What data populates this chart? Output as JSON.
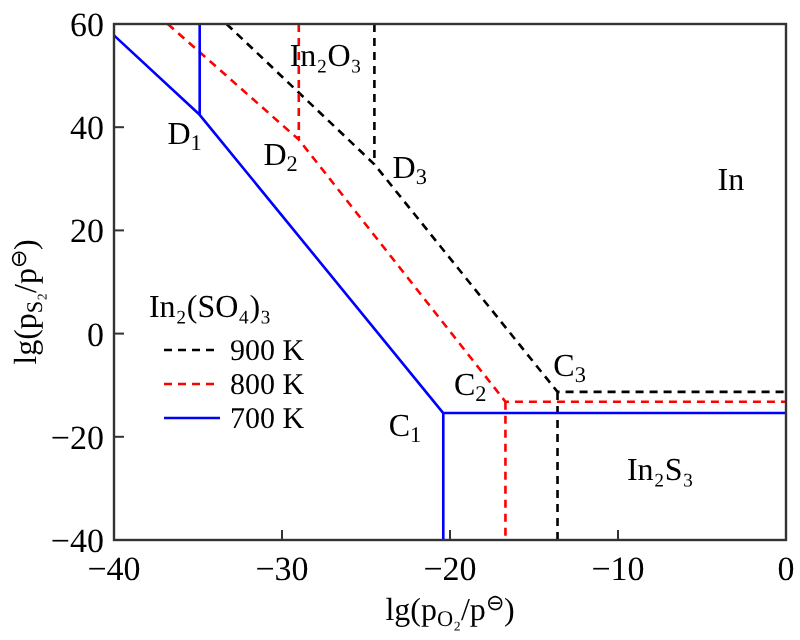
{
  "chart_data": {
    "type": "line",
    "xlabel": "lg(p$_{O₂}$/p$^{⊖}$)",
    "ylabel": "lg(p$_{S₂}$/p$^{⊖}$)",
    "xlim": [
      -40,
      0
    ],
    "ylim": [
      -40,
      60
    ],
    "xticks": [
      -40,
      -30,
      -20,
      -10,
      0
    ],
    "yticks": [
      -40,
      -20,
      0,
      20,
      40,
      60
    ],
    "series": [
      {
        "name": "900 K",
        "color": "#000000",
        "line_style": "dashed",
        "x": [
          -33.3,
          -24.5,
          -13.6,
          0,
          null,
          -24.5,
          -24.5,
          null,
          -13.6,
          -13.6
        ],
        "values": [
          60,
          32.8,
          -11.3,
          -11.3,
          null,
          60,
          32.8,
          null,
          -11.3,
          -40
        ]
      },
      {
        "name": "800 K",
        "color": "#ff0000",
        "line_style": "dashed",
        "x": [
          -36.8,
          -29,
          -16.7,
          0,
          null,
          -29,
          -29,
          null,
          -16.7,
          -16.7
        ],
        "values": [
          60,
          37.6,
          -13.2,
          -13.2,
          null,
          60,
          37.6,
          null,
          -13.2,
          -40
        ]
      },
      {
        "name": "700 K",
        "color": "#0000ff",
        "line_style": "solid",
        "x": [
          -40,
          -34.9,
          -20.4,
          0,
          null,
          -34.9,
          -34.9,
          null,
          -20.4,
          -20.4
        ],
        "values": [
          57.8,
          42.4,
          -15.4,
          -15.4,
          null,
          60,
          42.4,
          null,
          -15.4,
          -40
        ]
      }
    ],
    "annotations": [
      "D$_{1}$",
      "D$_{2}$",
      "D$_{3}$",
      "C$_{1}$",
      "C$_{2}$",
      "C$_{3}$",
      "In₂O₃",
      "In",
      "In₂(SO₄)₃",
      "In₂S₃"
    ],
    "legend": "bottom left",
    "grid": false
  }
}
